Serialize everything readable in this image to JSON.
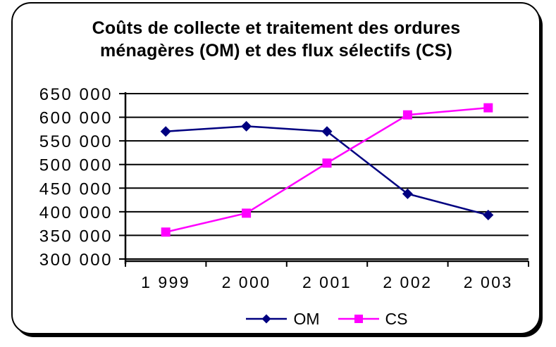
{
  "chart": {
    "title_line1": "Coûts de collecte et traitement des ordures",
    "title_line2": "ménagères (OM) et des flux sélectifs (CS)"
  },
  "chart_data": {
    "type": "line",
    "title": "Coûts de collecte et traitement des ordures ménagères (OM) et des flux sélectifs (CS)",
    "categories": [
      "1 999",
      "2 000",
      "2 001",
      "2 002",
      "2 003"
    ],
    "series": [
      {
        "name": "OM",
        "color": "#000080",
        "marker": "diamond",
        "values": [
          570000,
          581000,
          570000,
          438000,
          393000
        ]
      },
      {
        "name": "CS",
        "color": "#FF00FF",
        "marker": "square",
        "values": [
          357000,
          397000,
          503000,
          605000,
          620000
        ]
      }
    ],
    "xlabel": "",
    "ylabel": "",
    "ylim": [
      300000,
      650000
    ],
    "ytick_step": 50000,
    "ytick_labels": [
      "300 000",
      "350 000",
      "400 000",
      "450 000",
      "500 000",
      "550 000",
      "600 000",
      "650 000"
    ],
    "grid": true,
    "legend_position": "bottom",
    "axis_color": "#000000",
    "text_color": "#000000",
    "background_color": "#ffffff"
  }
}
